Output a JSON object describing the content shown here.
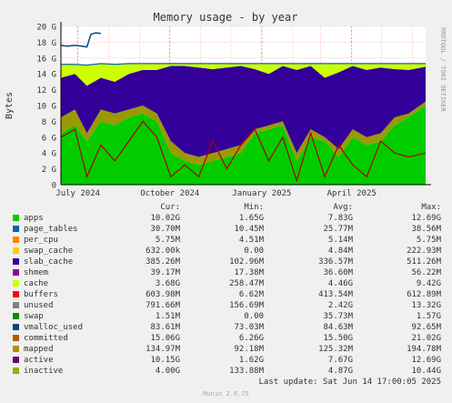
{
  "chart_data": {
    "type": "area",
    "title": "Memory usage - by year",
    "ylabel": "Bytes",
    "ylim": [
      0,
      20
    ],
    "y_ticks": [
      "0",
      "2 G",
      "4 G",
      "6 G",
      "8 G",
      "10 G",
      "12 G",
      "14 G",
      "16 G",
      "18 G",
      "20 G"
    ],
    "x_ticks": [
      "July 2024",
      "October 2024",
      "January 2025",
      "April 2025"
    ],
    "x_range": [
      "2024-06-14",
      "2025-06-14"
    ],
    "side_label": "RRDTOOL / TOBI OETIKER",
    "grid": true,
    "samples": {
      "x": [
        "2024-06-14",
        "2024-06-28",
        "2024-07-10",
        "2024-07-24",
        "2024-08-07",
        "2024-08-21",
        "2024-09-04",
        "2024-09-18",
        "2024-10-02",
        "2024-10-16",
        "2024-10-30",
        "2024-11-13",
        "2024-11-27",
        "2024-12-11",
        "2024-12-25",
        "2025-01-08",
        "2025-01-22",
        "2025-02-05",
        "2025-02-19",
        "2025-03-05",
        "2025-03-19",
        "2025-04-02",
        "2025-04-16",
        "2025-04-30",
        "2025-05-14",
        "2025-05-28",
        "2025-06-14"
      ],
      "apps": [
        6.5,
        7.5,
        5.5,
        8.0,
        7.5,
        8.5,
        9.0,
        8.0,
        4.0,
        3.0,
        2.5,
        3.0,
        3.5,
        4.0,
        6.5,
        7.0,
        7.5,
        3.0,
        6.0,
        5.5,
        3.5,
        6.0,
        5.0,
        5.5,
        7.5,
        8.5,
        10.0
      ],
      "active": [
        8.5,
        9.5,
        6.5,
        9.5,
        9.0,
        9.5,
        10.0,
        9.0,
        5.5,
        4.0,
        3.5,
        4.0,
        4.5,
        5.0,
        7.0,
        7.5,
        8.0,
        4.0,
        7.0,
        6.0,
        4.5,
        7.0,
        6.0,
        6.5,
        8.5,
        9.0,
        10.5
      ],
      "cache": [
        13.5,
        14.0,
        12.5,
        13.5,
        13.0,
        14.0,
        14.5,
        14.5,
        15.0,
        15.0,
        14.8,
        14.6,
        14.8,
        15.0,
        14.6,
        14.0,
        15.0,
        14.5,
        15.0,
        13.5,
        14.2,
        15.0,
        14.5,
        14.8,
        14.6,
        14.5,
        14.9
      ],
      "total": [
        15.2,
        15.2,
        15.1,
        15.3,
        15.2,
        15.3,
        15.3,
        15.3,
        15.3,
        15.3,
        15.3,
        15.3,
        15.3,
        15.3,
        15.3,
        15.3,
        15.3,
        15.3,
        15.3,
        15.3,
        15.3,
        15.3,
        15.3,
        15.3,
        15.3,
        15.3,
        15.3
      ],
      "inactive": [
        6.0,
        7.0,
        1.0,
        5.0,
        3.0,
        5.5,
        8.0,
        6.0,
        1.0,
        2.5,
        1.0,
        5.5,
        2.0,
        5.0,
        7.0,
        3.0,
        6.0,
        0.5,
        6.5,
        1.0,
        5.0,
        2.5,
        1.0,
        5.5,
        4.0,
        3.5,
        4.0
      ],
      "committed_segment": {
        "x": [
          "2024-06-14",
          "2024-06-20",
          "2024-06-28",
          "2024-07-05",
          "2024-07-10",
          "2024-07-14",
          "2024-07-19",
          "2024-07-24"
        ],
        "y": [
          17.6,
          17.5,
          17.6,
          17.5,
          17.4,
          19.0,
          19.2,
          19.1
        ]
      }
    },
    "series": [
      {
        "name": "apps",
        "color": "#00cc00"
      },
      {
        "name": "page_tables",
        "color": "#0066b3"
      },
      {
        "name": "per_cpu",
        "color": "#ff8000"
      },
      {
        "name": "swap_cache",
        "color": "#ffcc00"
      },
      {
        "name": "slab_cache",
        "color": "#330099"
      },
      {
        "name": "shmem",
        "color": "#990099"
      },
      {
        "name": "cache",
        "color": "#ccff00"
      },
      {
        "name": "buffers",
        "color": "#ff0000"
      },
      {
        "name": "unused",
        "color": "#808080"
      },
      {
        "name": "swap",
        "color": "#008f00"
      },
      {
        "name": "vmalloc_used",
        "color": "#00487d"
      },
      {
        "name": "committed",
        "color": "#b35a00"
      },
      {
        "name": "mapped",
        "color": "#b38f00"
      },
      {
        "name": "active",
        "color": "#6b006b"
      },
      {
        "name": "inactive",
        "color": "#8fb300"
      }
    ]
  },
  "legend": {
    "headers": {
      "cur": "Cur:",
      "min": "Min:",
      "avg": "Avg:",
      "max": "Max:"
    },
    "rows": [
      {
        "name": "apps",
        "color": "#00cc00",
        "cur": "10.02G",
        "min": "1.65G",
        "avg": "7.83G",
        "max": "12.69G"
      },
      {
        "name": "page_tables",
        "color": "#0066b3",
        "cur": "30.70M",
        "min": "10.45M",
        "avg": "25.77M",
        "max": "38.56M"
      },
      {
        "name": "per_cpu",
        "color": "#ff8000",
        "cur": "5.75M",
        "min": "4.51M",
        "avg": "5.14M",
        "max": "5.75M"
      },
      {
        "name": "swap_cache",
        "color": "#ffcc00",
        "cur": "632.00k",
        "min": "0.00",
        "avg": "4.84M",
        "max": "222.93M"
      },
      {
        "name": "slab_cache",
        "color": "#330099",
        "cur": "385.26M",
        "min": "102.96M",
        "avg": "336.57M",
        "max": "511.26M"
      },
      {
        "name": "shmem",
        "color": "#990099",
        "cur": "39.17M",
        "min": "17.38M",
        "avg": "36.60M",
        "max": "56.22M"
      },
      {
        "name": "cache",
        "color": "#ccff00",
        "cur": "3.68G",
        "min": "258.47M",
        "avg": "4.46G",
        "max": "9.42G"
      },
      {
        "name": "buffers",
        "color": "#ff0000",
        "cur": "603.98M",
        "min": "6.62M",
        "avg": "413.54M",
        "max": "612.89M"
      },
      {
        "name": "unused",
        "color": "#808080",
        "cur": "791.66M",
        "min": "156.69M",
        "avg": "2.42G",
        "max": "13.32G"
      },
      {
        "name": "swap",
        "color": "#008f00",
        "cur": "1.51M",
        "min": "0.00",
        "avg": "35.73M",
        "max": "1.57G"
      },
      {
        "name": "vmalloc_used",
        "color": "#00487d",
        "cur": "83.61M",
        "min": "73.03M",
        "avg": "84.63M",
        "max": "92.65M"
      },
      {
        "name": "committed",
        "color": "#b35a00",
        "cur": "15.06G",
        "min": "6.26G",
        "avg": "15.50G",
        "max": "21.02G"
      },
      {
        "name": "mapped",
        "color": "#b38f00",
        "cur": "134.97M",
        "min": "92.18M",
        "avg": "125.32M",
        "max": "194.78M"
      },
      {
        "name": "active",
        "color": "#6b006b",
        "cur": "10.15G",
        "min": "1.62G",
        "avg": "7.67G",
        "max": "12.69G"
      },
      {
        "name": "inactive",
        "color": "#8fb300",
        "cur": "4.00G",
        "min": "133.88M",
        "avg": "4.87G",
        "max": "10.44G"
      }
    ]
  },
  "footer": {
    "last_update": "Last update: Sat Jun 14 17:00:05 2025",
    "munin": "Munin 2.0.75"
  }
}
